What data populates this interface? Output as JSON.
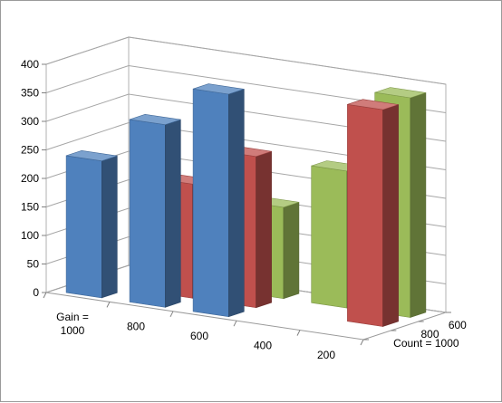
{
  "chart_data": {
    "type": "bar",
    "subtype": "3d-column",
    "title": "",
    "xlabel": "",
    "ylabel": "",
    "ylim": [
      0,
      400
    ],
    "yticks": [
      "0",
      "50",
      "100",
      "150",
      "200",
      "250",
      "300",
      "350",
      "400"
    ],
    "categories": [
      {
        "lines": [
          "Gain =",
          "1000"
        ]
      },
      {
        "lines": [
          "800"
        ]
      },
      {
        "lines": [
          "600"
        ]
      },
      {
        "lines": [
          "400"
        ]
      },
      {
        "lines": [
          "200"
        ]
      }
    ],
    "depth_categories": [
      "Count = 1000",
      "800",
      "600"
    ],
    "series": [
      {
        "depth_label": "Count = 1000",
        "color": "#4f81bd",
        "values": [
          240,
          320,
          390,
          null,
          null
        ]
      },
      {
        "depth_label": "800",
        "color": "#c0504d",
        "values": [
          null,
          200,
          265,
          null,
          380
        ]
      },
      {
        "depth_label": "600",
        "color": "#9bbb59",
        "values": [
          null,
          null,
          160,
          240,
          385
        ]
      }
    ],
    "grid": true,
    "legend": "none"
  }
}
